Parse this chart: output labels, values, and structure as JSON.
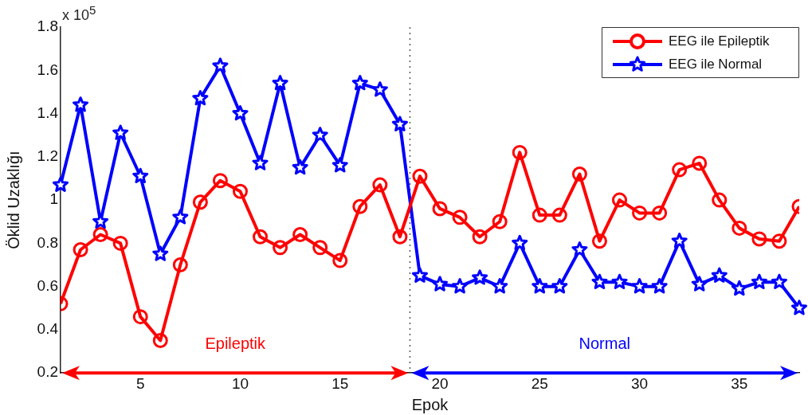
{
  "chart_data": {
    "type": "line",
    "xlabel": "Epok",
    "ylabel": "Öklid Uzaklığı",
    "x": [
      1,
      2,
      3,
      4,
      5,
      6,
      7,
      8,
      9,
      10,
      11,
      12,
      13,
      14,
      15,
      16,
      17,
      18,
      19,
      20,
      21,
      22,
      23,
      24,
      25,
      26,
      27,
      28,
      29,
      30,
      31,
      32,
      33,
      34,
      35,
      36,
      37,
      38
    ],
    "series": [
      {
        "name": "EEG ile Epileptik",
        "color": "#ff0000",
        "marker": "circle",
        "values": [
          0.52,
          0.77,
          0.84,
          0.8,
          0.46,
          0.35,
          0.7,
          0.99,
          1.09,
          1.04,
          0.83,
          0.78,
          0.84,
          0.78,
          0.72,
          0.97,
          1.07,
          0.83,
          1.11,
          0.96,
          0.92,
          0.83,
          0.9,
          1.22,
          0.93,
          0.93,
          1.12,
          0.81,
          1.0,
          0.94,
          0.94,
          1.14,
          1.17,
          1.0,
          0.87,
          0.82,
          0.81,
          0.97
        ]
      },
      {
        "name": "EEG ile Normal",
        "color": "#0000ff",
        "marker": "star",
        "values": [
          1.07,
          1.44,
          0.9,
          1.31,
          1.11,
          0.75,
          0.92,
          1.47,
          1.62,
          1.4,
          1.17,
          1.54,
          1.15,
          1.3,
          1.16,
          1.54,
          1.51,
          1.35,
          0.65,
          0.61,
          0.6,
          0.64,
          0.6,
          0.8,
          0.6,
          0.6,
          0.77,
          0.62,
          0.62,
          0.6,
          0.6,
          0.81,
          0.61,
          0.65,
          0.59,
          0.62,
          0.62,
          0.5
        ]
      }
    ],
    "xlim": [
      1,
      38
    ],
    "xticks": [
      5,
      10,
      15,
      20,
      25,
      30,
      35
    ],
    "ylim": [
      0.2,
      1.8
    ],
    "yticks": [
      0.2,
      0.4,
      0.6,
      0.8,
      1,
      1.2,
      1.4,
      1.6,
      1.8
    ],
    "ref_lines": [
      {
        "axis": "x",
        "value": 18.5,
        "color": "#555555",
        "line_style": "dotted"
      }
    ],
    "annotations": [
      "x 10$^{5}$",
      "Epileptik",
      "Normal"
    ],
    "grid": false,
    "legend": "top right",
    "line_style": "solid"
  }
}
